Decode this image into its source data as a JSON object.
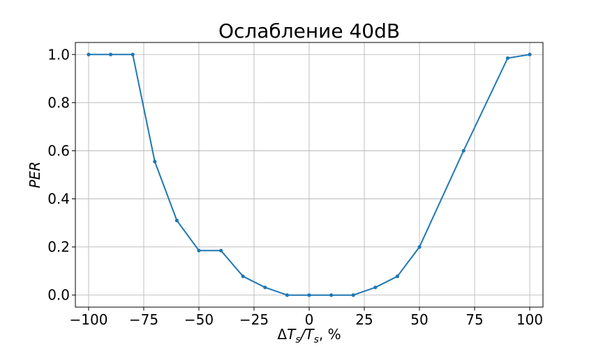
{
  "chart_data": {
    "type": "line",
    "title": "Ослабление 40dB",
    "xlabel": {
      "prefix": "Δ",
      "t1": "T",
      "sub1": "s",
      "slash": "/",
      "t2": "T",
      "sub2": "s",
      "suffix": ", %"
    },
    "ylabel": "PER",
    "xlim": [
      -106,
      106
    ],
    "ylim": [
      -0.05,
      1.05
    ],
    "xticks": [
      -100,
      -75,
      -50,
      -25,
      0,
      25,
      50,
      75,
      100
    ],
    "xtick_labels": [
      "−100",
      "−75",
      "−50",
      "−25",
      "0",
      "25",
      "50",
      "75",
      "100"
    ],
    "yticks": [
      0.0,
      0.2,
      0.4,
      0.6,
      0.8,
      1.0
    ],
    "ytick_labels": [
      "0.0",
      "0.2",
      "0.4",
      "0.6",
      "0.8",
      "1.0"
    ],
    "grid": true,
    "series": [
      {
        "color": "#1f77b4",
        "x": [
          -100,
          -90,
          -80,
          -70,
          -60,
          -50,
          -40,
          -30,
          -20,
          -10,
          0,
          10,
          20,
          30,
          40,
          50,
          70,
          90,
          100
        ],
        "y": [
          1.0,
          1.0,
          1.0,
          0.555,
          0.31,
          0.185,
          0.185,
          0.078,
          0.032,
          0.0,
          0.0,
          0.0,
          0.0,
          0.032,
          0.078,
          0.2,
          0.6,
          0.985,
          1.0
        ]
      }
    ]
  }
}
